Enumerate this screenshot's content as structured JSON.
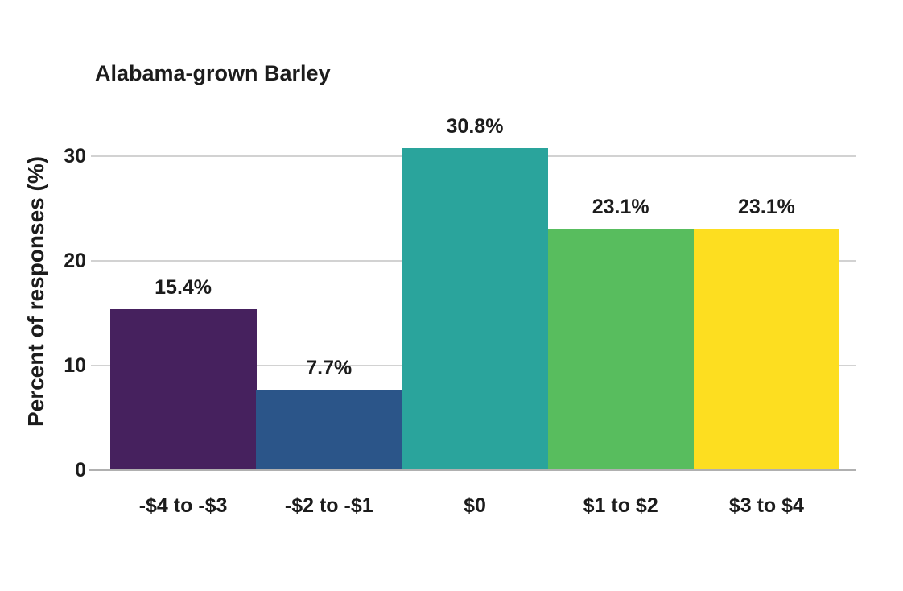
{
  "figure": {
    "title": "Alabama-grown Barley",
    "y_axis_title": "Percent of responses (%)"
  },
  "chart_data": {
    "type": "bar",
    "title": "Alabama-grown Barley",
    "xlabel": "",
    "ylabel": "Percent of responses (%)",
    "categories": [
      "-$4 to -$3",
      "-$2 to -$1",
      "$0",
      "$1 to $2",
      "$3 to $4"
    ],
    "values": [
      15.4,
      7.7,
      30.8,
      23.1,
      23.1
    ],
    "value_labels": [
      "15.4%",
      "7.7%",
      "30.8%",
      "23.1%",
      "23.1%"
    ],
    "bar_colors": [
      "#46215e",
      "#2b5589",
      "#2aa49c",
      "#58bd5e",
      "#fdde20"
    ],
    "yticks": [
      0,
      10,
      20,
      30
    ],
    "ytick_labels": [
      "0",
      "10",
      "20",
      "30"
    ],
    "ylim": [
      0,
      34.15
    ],
    "grid": "horizontal",
    "legend": "none"
  },
  "colors": {
    "text": "#1c1c1c",
    "gridline": "#d2d2d2",
    "axis_line": "#b0b0b0",
    "background": "#ffffff"
  }
}
